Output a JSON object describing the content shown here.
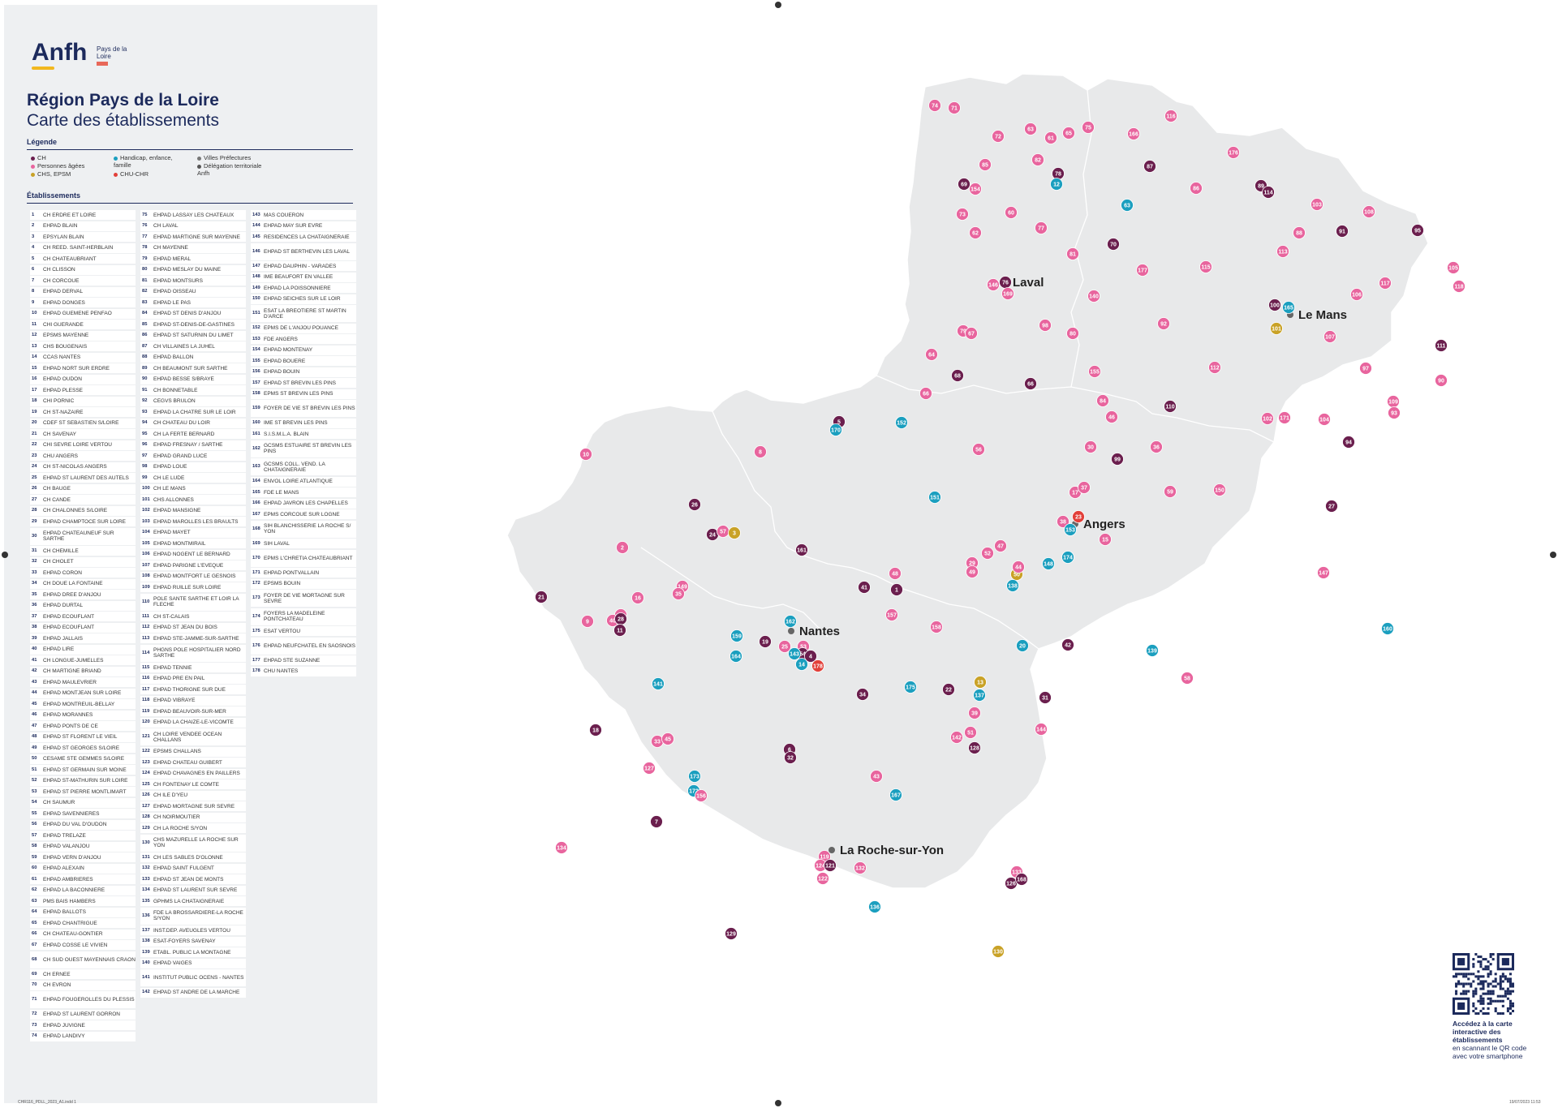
{
  "logo": {
    "word": "Anfh",
    "sub": "Pays de la Loire"
  },
  "header": {
    "title": "Région Pays de la Loire",
    "subtitle": "Carte des établissements"
  },
  "legend": {
    "heading": "Légende",
    "items": [
      {
        "label": "CH",
        "color": "#6b1f4e"
      },
      {
        "label": "Personnes âgées",
        "color": "#e8659e"
      },
      {
        "label": "CHS, EPSM",
        "color": "#c9a227"
      },
      {
        "label": "Handicap, enfance, famille",
        "color": "#1b9fbf"
      },
      {
        "label": "CHU-CHR",
        "color": "#e2403a"
      },
      {
        "label": "Villes Préfectures",
        "color": "#777777"
      },
      {
        "label": "Délégation territoriale Anfh",
        "color": "#555555"
      }
    ]
  },
  "establishments": {
    "heading": "Établissements",
    "items": [
      "CH ERDRE ET LOIRE",
      "EHPAD BLAIN",
      "EPSYLAN BLAIN",
      "CH REED. SAINT-HERBLAIN",
      "CH CHATEAUBRIANT",
      "CH CLISSON",
      "CH CORCOUE",
      "EHPAD DERVAL",
      "EHPAD DONGES",
      "EHPAD GUEMENE PENFAO",
      "CHI GUERANDE",
      "EPSMS MAYENNE",
      "CHS BOUGENAIS",
      "CCAS NANTES",
      "EHPAD NORT SUR ERDRE",
      "EHPAD OUDON",
      "EHPAD PLESSE",
      "CHI PORNIC",
      "CH ST-NAZAIRE",
      "CDEF ST SEBASTIEN S/LOIRE",
      "CH SAVENAY",
      "CHI SEVRE LOIRE VERTOU",
      "CHU ANGERS",
      "CH ST-NICOLAS ANGERS",
      "EHPAD ST LAURENT DES AUTELS",
      "CH BAUGE",
      "CH CANDE",
      "CH CHALONNES S/LOIRE",
      "EHPAD CHAMPTOCE SUR LOIRE",
      "EHPAD CHATEAUNEUF SUR SARTHE",
      "CH CHEMILLE",
      "CH CHOLET",
      "EHPAD CORON",
      "CH DOUE LA FONTAINE",
      "EHPAD DREE D'ANJOU",
      "EHPAD DURTAL",
      "EHPAD ECOUFLANT",
      "EHPAD ECOUFLANT",
      "EHPAD JALLAIS",
      "EHPAD LIRE",
      "CH LONGUE-JUMELLES",
      "CH MARTIGNE BRIAND",
      "EHPAD MAULEVRIER",
      "EHPAD MONTJEAN SUR LOIRE",
      "EHPAD MONTREUIL-BELLAY",
      "EHPAD MORANNES",
      "EHPAD PONTS DE CE",
      "EHPAD ST FLORENT LE VIEIL",
      "EHPAD ST GEORGES S/LOIRE",
      "CESAME STE GEMMES S/LOIRE",
      "EHPAD ST GERMAIN SUR MOINE",
      "EHPAD ST-MATHURIN SUR LOIRE",
      "EHPAD ST PIERRE MONTLIMART",
      "CH SAUMUR",
      "EHPAD SAVENNIERES",
      "EHPAD DU VAL D'OUDON",
      "EHPAD TRELAZE",
      "EHPAD VALANJOU",
      "EHPAD VERN D'ANJOU",
      "EHPAD ALEXAIN",
      "EHPAD AMBRIERES",
      "EHPAD LA BACONNIERE",
      "PMS BAIS HAMBERS",
      "EHPAD BALLOTS",
      "EHPAD CHANTRIGUE",
      "CH CHATEAU-GONTIER",
      "EHPAD COSSE LE VIVIEN",
      "CH SUD OUEST MAYENNAIS CRAON",
      "CH ERNEE",
      "CH EVRON",
      "EHPAD FOUGEROLLES DU PLESSIS",
      "EHPAD ST LAURENT GORRON",
      "EHPAD JUVIGNE",
      "EHPAD LANDIVY",
      "EHPAD LASSAY LES CHATEAUX",
      "CH LAVAL",
      "EHPAD MARTIGNE SUR MAYENNE",
      "CH MAYENNE",
      "EHPAD MERAL",
      "EHPAD MESLAY DU MAINE",
      "EHPAD MONTSURS",
      "EHPAD OISSEAU",
      "EHPAD LE PAS",
      "EHPAD ST DENIS D'ANJOU",
      "EHPAD ST-DENIS-DE-GASTINES",
      "EHPAD ST SATURNIN DU LIMET",
      "CH VILLAINES LA JUHEL",
      "EHPAD BALLON",
      "CH BEAUMONT SUR SARTHE",
      "EHPAD BESSE S/BRAYE",
      "CH BONNETABLE",
      "CEGVS BRULON",
      "EHPAD LA CHATRE SUR LE LOIR",
      "CH CHATEAU DU LOIR",
      "CH LA FERTE BERNARD",
      "EHPAD FRESNAY / SARTHE",
      "EHPAD GRAND LUCE",
      "EHPAD LOUE",
      "CH LE LUDE",
      "CH LE MANS",
      "CHS ALLONNES",
      "EHPAD MANSIGNE",
      "EHPAD MAROLLES LES BRAULTS",
      "EHPAD MAYET",
      "EHPAD MONTMIRAIL",
      "EHPAD NOGENT LE BERNARD",
      "EHPAD PARIGNE L'EVEQUE",
      "EHPAD MONTFORT LE GESNOIS",
      "EHPAD RUILLE SUR LOIRE",
      "POLE SANTE SARTHE ET LOIR LA FLECHE",
      "CH ST-CALAIS",
      "EHPAD ST JEAN DU BOIS",
      "EHPAD STE-JAMME-SUR-SARTHE",
      "PHGNS POLE HOSPITALIER NORD SARTHE",
      "EHPAD TENNIE",
      "EHPAD PRE EN PAIL",
      "EHPAD THORIGNE SUR DUE",
      "EHPAD VIBRAYE",
      "EHPAD BEAUVOIR-SUR-MER",
      "EHPAD LA CHAIZE-LE-VICOMTE",
      "CH LOIRE VENDEE OCEAN CHALLANS",
      "EPSMS CHALLANS",
      "EHPAD CHATEAU GUIBERT",
      "EHPAD CHAVAGNES EN PAILLERS",
      "CH FONTENAY LE COMTE",
      "CH ILE D'YEU",
      "EHPAD MORTAGNE SUR SEVRE",
      "CH NOIRMOUTIER",
      "CH LA ROCHE S/YON",
      "CHS MAZURELLE LA ROCHE SUR YON",
      "CH LES SABLES D'OLONNE",
      "EHPAD SAINT FULGENT",
      "EHPAD ST JEAN DE MONTS",
      "EHPAD ST LAURENT SUR SEVRE",
      "GPHMS LA CHATAIGNERAIE",
      "FDE LA BROSSARDIERE-LA ROCHE S/YON",
      "INST.DEP. AVEUGLES VERTOU",
      "ESAT-FOYERS SAVENAY",
      "ETABL. PUBLIC LA MONTAGNE",
      "EHPAD VAIGES",
      "INSTITUT PUBLIC OCENS - NANTES",
      "EHPAD ST ANDRE DE LA MARCHE",
      "MAS COUERON",
      "EHPAD MAY SUR EVRE",
      "RESIDENCES LA CHATAIGNERAIE",
      "EHPAD ST BERTHEVIN LES LAVAL",
      "EHPAD DAUPHIN - VARADES",
      "IME BEAUFORT EN VALLEE",
      "EHPAD LA POISSONNIERE",
      "EHPAD SEICHES SUR LE LOIR",
      "ESAT LA BREOTIERE ST MARTIN D'ARCE",
      "EPMS DE L'ANJOU POUANCE",
      "FDE ANGERS",
      "EHPAD MONTENAY",
      "EHPAD BOUERE",
      "EHPAD BOUIN",
      "EHPAD ST BREVIN LES PINS",
      "EPMS ST BREVIN LES PINS",
      "FOYER DE VIE ST BREVIN LES PINS",
      "IME ST BREVIN LES PINS",
      "S.I.S.M.L.A. BLAIN",
      "GCSMS ESTUAIRE ST BREVIN LES PINS",
      "GCSMS COLL. VEND. LA CHATAIGNERAIE",
      "ENVOL LOIRE ATLANTIQUE",
      "FDE LE MANS",
      "EHPAD JAVRON LES CHAPELLES",
      "EPMS CORCOUE SUR LOGNE",
      "SIH BLANCHISSERIE LA ROCHE S/ YON",
      "SIH LAVAL",
      "EPMS L'CHRETIA CHATEAUBRIANT",
      "EHPAD PONTVALLAIN",
      "EPSMS BOUIN",
      "FOYER DE VIE MORTAGNE SUR SEVRE",
      "FOYERS LA MADELEINE PONTCHATEAU",
      "ESAT VERTOU",
      "EHPAD NEUFCHATEL EN SAOSNOIS",
      "EHPAD STE SUZANNE",
      "CHU NANTES"
    ]
  },
  "cities": [
    {
      "name": "Laval"
    },
    {
      "name": "Le Mans"
    },
    {
      "name": "Angers"
    },
    {
      "name": "Nantes"
    },
    {
      "name": "La Roche-sur-Yon"
    }
  ],
  "markers": [
    {
      "n": "74",
      "c": "pa"
    },
    {
      "n": "71",
      "c": "pa"
    },
    {
      "n": "72",
      "c": "pa"
    },
    {
      "n": "63",
      "c": "pa"
    },
    {
      "n": "61",
      "c": "pa"
    },
    {
      "n": "65",
      "c": "pa"
    },
    {
      "n": "75",
      "c": "pa"
    },
    {
      "n": "166",
      "c": "pa"
    },
    {
      "n": "116",
      "c": "pa"
    },
    {
      "n": "85",
      "c": "pa"
    },
    {
      "n": "82",
      "c": "pa"
    },
    {
      "n": "78",
      "c": "ch"
    },
    {
      "n": "12",
      "c": "hf"
    },
    {
      "n": "87",
      "c": "ch"
    },
    {
      "n": "176",
      "c": "pa"
    },
    {
      "n": "69",
      "c": "ch"
    },
    {
      "n": "154",
      "c": "pa"
    },
    {
      "n": "63",
      "c": "hf"
    },
    {
      "n": "86",
      "c": "pa"
    },
    {
      "n": "89",
      "c": "ch"
    },
    {
      "n": "114",
      "c": "ch"
    },
    {
      "n": "103",
      "c": "pa"
    },
    {
      "n": "108",
      "c": "pa"
    },
    {
      "n": "73",
      "c": "pa"
    },
    {
      "n": "60",
      "c": "pa"
    },
    {
      "n": "77",
      "c": "pa"
    },
    {
      "n": "62",
      "c": "pa"
    },
    {
      "n": "70",
      "c": "ch"
    },
    {
      "n": "88",
      "c": "pa"
    },
    {
      "n": "91",
      "c": "ch"
    },
    {
      "n": "95",
      "c": "ch"
    },
    {
      "n": "113",
      "c": "pa"
    },
    {
      "n": "81",
      "c": "pa"
    },
    {
      "n": "177",
      "c": "pa"
    },
    {
      "n": "115",
      "c": "pa"
    },
    {
      "n": "105",
      "c": "pa"
    },
    {
      "n": "76",
      "c": "ch"
    },
    {
      "n": "146",
      "c": "pa"
    },
    {
      "n": "169",
      "c": "pa"
    },
    {
      "n": "140",
      "c": "pa"
    },
    {
      "n": "106",
      "c": "pa"
    },
    {
      "n": "117",
      "c": "pa"
    },
    {
      "n": "118",
      "c": "pa"
    },
    {
      "n": "100",
      "c": "ch"
    },
    {
      "n": "165",
      "c": "hf"
    },
    {
      "n": "98",
      "c": "pa"
    },
    {
      "n": "92",
      "c": "pa"
    },
    {
      "n": "101",
      "c": "cs"
    },
    {
      "n": "107",
      "c": "pa"
    },
    {
      "n": "79",
      "c": "pa"
    },
    {
      "n": "67",
      "c": "pa"
    },
    {
      "n": "80",
      "c": "pa"
    },
    {
      "n": "111",
      "c": "ch"
    },
    {
      "n": "64",
      "c": "pa"
    },
    {
      "n": "112",
      "c": "pa"
    },
    {
      "n": "97",
      "c": "pa"
    },
    {
      "n": "90",
      "c": "pa"
    },
    {
      "n": "68",
      "c": "ch"
    },
    {
      "n": "66",
      "c": "ch"
    },
    {
      "n": "155",
      "c": "pa"
    },
    {
      "n": "66",
      "c": "pa"
    },
    {
      "n": "84",
      "c": "pa"
    },
    {
      "n": "110",
      "c": "ch"
    },
    {
      "n": "46",
      "c": "pa"
    },
    {
      "n": "102",
      "c": "pa"
    },
    {
      "n": "171",
      "c": "pa"
    },
    {
      "n": "104",
      "c": "pa"
    },
    {
      "n": "109",
      "c": "pa"
    },
    {
      "n": "93",
      "c": "pa"
    },
    {
      "n": "5",
      "c": "ch"
    },
    {
      "n": "170",
      "c": "hf"
    },
    {
      "n": "152",
      "c": "hf"
    },
    {
      "n": "30",
      "c": "pa"
    },
    {
      "n": "36",
      "c": "pa"
    },
    {
      "n": "94",
      "c": "ch"
    },
    {
      "n": "56",
      "c": "pa"
    },
    {
      "n": "99",
      "c": "ch"
    },
    {
      "n": "10",
      "c": "pa"
    },
    {
      "n": "8",
      "c": "pa"
    },
    {
      "n": "59",
      "c": "pa"
    },
    {
      "n": "150",
      "c": "pa"
    },
    {
      "n": "151",
      "c": "hf"
    },
    {
      "n": "27",
      "c": "ch"
    },
    {
      "n": "26",
      "c": "ch"
    },
    {
      "n": "17",
      "c": "pa"
    },
    {
      "n": "37",
      "c": "pa"
    },
    {
      "n": "38",
      "c": "pa"
    },
    {
      "n": "153",
      "c": "hf"
    },
    {
      "n": "23",
      "c": "cu"
    },
    {
      "n": "24",
      "c": "ch"
    },
    {
      "n": "57",
      "c": "pa"
    },
    {
      "n": "3",
      "c": "cs"
    },
    {
      "n": "2",
      "c": "pa"
    },
    {
      "n": "161",
      "c": "ch"
    },
    {
      "n": "174",
      "c": "hf"
    },
    {
      "n": "15",
      "c": "pa"
    },
    {
      "n": "148",
      "c": "hf"
    },
    {
      "n": "50",
      "c": "cs"
    },
    {
      "n": "47",
      "c": "pa"
    },
    {
      "n": "52",
      "c": "pa"
    },
    {
      "n": "29",
      "c": "pa"
    },
    {
      "n": "49",
      "c": "pa"
    },
    {
      "n": "44",
      "c": "pa"
    },
    {
      "n": "147",
      "c": "pa"
    },
    {
      "n": "48",
      "c": "pa"
    },
    {
      "n": "149",
      "c": "pa"
    },
    {
      "n": "35",
      "c": "pa"
    },
    {
      "n": "41",
      "c": "ch"
    },
    {
      "n": "1",
      "c": "ch"
    },
    {
      "n": "138",
      "c": "hf"
    },
    {
      "n": "21",
      "c": "ch"
    },
    {
      "n": "16",
      "c": "pa"
    },
    {
      "n": "39",
      "c": "pa"
    },
    {
      "n": "40",
      "c": "pa"
    },
    {
      "n": "28",
      "c": "ch"
    },
    {
      "n": "11",
      "c": "ch"
    },
    {
      "n": "9",
      "c": "pa"
    },
    {
      "n": "157",
      "c": "pa"
    },
    {
      "n": "158",
      "c": "pa"
    },
    {
      "n": "160",
      "c": "hf"
    },
    {
      "n": "162",
      "c": "hf"
    },
    {
      "n": "159",
      "c": "hf"
    },
    {
      "n": "19",
      "c": "ch"
    },
    {
      "n": "25",
      "c": "pa"
    },
    {
      "n": "53",
      "c": "pa"
    },
    {
      "n": "54",
      "c": "ch"
    },
    {
      "n": "164",
      "c": "hf"
    },
    {
      "n": "143",
      "c": "hf"
    },
    {
      "n": "4",
      "c": "ch"
    },
    {
      "n": "14",
      "c": "hf"
    },
    {
      "n": "178",
      "c": "cu"
    },
    {
      "n": "20",
      "c": "hf"
    },
    {
      "n": "42",
      "c": "ch"
    },
    {
      "n": "139",
      "c": "hf"
    },
    {
      "n": "13",
      "c": "cs"
    },
    {
      "n": "141",
      "c": "hf"
    },
    {
      "n": "175",
      "c": "hf"
    },
    {
      "n": "22",
      "c": "ch"
    },
    {
      "n": "137",
      "c": "hf"
    },
    {
      "n": "31",
      "c": "ch"
    },
    {
      "n": "58",
      "c": "pa"
    },
    {
      "n": "34",
      "c": "ch"
    },
    {
      "n": "39",
      "c": "pa"
    },
    {
      "n": "18",
      "c": "ch"
    },
    {
      "n": "51",
      "c": "pa"
    },
    {
      "n": "142",
      "c": "pa"
    },
    {
      "n": "144",
      "c": "pa"
    },
    {
      "n": "33",
      "c": "pa"
    },
    {
      "n": "45",
      "c": "pa"
    },
    {
      "n": "6",
      "c": "ch"
    },
    {
      "n": "32",
      "c": "ch"
    },
    {
      "n": "128",
      "c": "ch"
    },
    {
      "n": "127",
      "c": "pa"
    },
    {
      "n": "173",
      "c": "hf"
    },
    {
      "n": "43",
      "c": "pa"
    },
    {
      "n": "172",
      "c": "hf"
    },
    {
      "n": "156",
      "c": "pa"
    },
    {
      "n": "167",
      "c": "hf"
    },
    {
      "n": "7",
      "c": "ch"
    },
    {
      "n": "134",
      "c": "pa"
    },
    {
      "n": "119",
      "c": "pa"
    },
    {
      "n": "124",
      "c": "pa"
    },
    {
      "n": "121",
      "c": "ch"
    },
    {
      "n": "122",
      "c": "pa"
    },
    {
      "n": "132",
      "c": "pa"
    },
    {
      "n": "133",
      "c": "pa"
    },
    {
      "n": "126",
      "c": "ch"
    },
    {
      "n": "168",
      "c": "ch"
    },
    {
      "n": "136",
      "c": "hf"
    },
    {
      "n": "129",
      "c": "ch"
    },
    {
      "n": "130",
      "c": "cs"
    },
    {
      "n": "120",
      "c": "pa"
    },
    {
      "n": "163",
      "c": "hf"
    },
    {
      "n": "135",
      "c": "ch"
    },
    {
      "n": "145",
      "c": "hf"
    },
    {
      "n": "123",
      "c": "pa"
    },
    {
      "n": "131",
      "c": "ch"
    },
    {
      "n": "125",
      "c": "ch"
    }
  ],
  "category_colors": {
    "ch": "#6b1f4e",
    "pa": "#e8659e",
    "cs": "#c9a227",
    "hf": "#1b9fbf",
    "cu": "#e2403a"
  },
  "qr": {
    "bold": "Accédez à la carte interactive des établissements",
    "rest": "en scannant le QR code avec votre smartphone"
  },
  "footer": {
    "left": "CHR116_PDLL_2023_A1.indd 1",
    "right": "19/07/2023 11:53"
  }
}
